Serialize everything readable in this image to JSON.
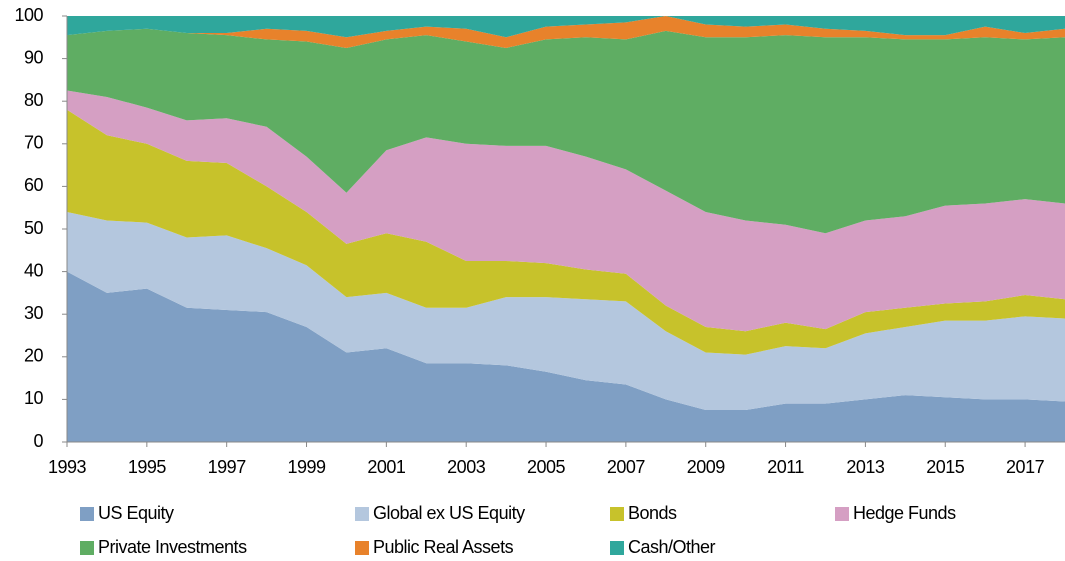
{
  "chart_data": {
    "type": "stacked_area",
    "x": [
      1993,
      1994,
      1995,
      1996,
      1997,
      1998,
      1999,
      2000,
      2001,
      2002,
      2003,
      2004,
      2005,
      2006,
      2007,
      2008,
      2009,
      2010,
      2011,
      2012,
      2013,
      2014,
      2015,
      2016,
      2017,
      2018
    ],
    "xlim": [
      1993,
      2018
    ],
    "xticks": [
      1993,
      1995,
      1997,
      1999,
      2001,
      2003,
      2005,
      2007,
      2009,
      2011,
      2013,
      2015,
      2017
    ],
    "ylim": [
      0,
      100
    ],
    "yticks": [
      0,
      10,
      20,
      30,
      40,
      50,
      60,
      70,
      80,
      90,
      100
    ],
    "grid": false,
    "series": [
      {
        "name": "US Equity",
        "color": "#7f9fc4",
        "values": [
          40,
          35,
          36,
          31.5,
          31,
          30.5,
          27,
          21,
          22,
          18.5,
          18.5,
          18,
          16.5,
          14.5,
          13.5,
          10,
          7.5,
          7.5,
          9,
          9,
          10,
          11,
          10.5,
          10,
          10,
          9.5
        ]
      },
      {
        "name": "Global ex US Equity",
        "color": "#b4c7de",
        "values": [
          14,
          17,
          15.5,
          16.5,
          17.5,
          15,
          14.5,
          13,
          13,
          13,
          13,
          16,
          17.5,
          19,
          19.5,
          16,
          13.5,
          13,
          13.5,
          13,
          15.5,
          16,
          18,
          18.5,
          19.5,
          19.5
        ]
      },
      {
        "name": "Bonds",
        "color": "#c7c22b",
        "values": [
          24,
          20,
          18.5,
          18,
          17,
          14.5,
          12.5,
          12.5,
          14,
          15.5,
          11,
          8.5,
          8,
          7,
          6.5,
          6,
          6,
          5.5,
          5.5,
          4.5,
          5,
          4.5,
          4,
          4.5,
          5,
          4.5
        ]
      },
      {
        "name": "Hedge Funds",
        "color": "#d59fc3",
        "values": [
          4.5,
          9,
          8.5,
          9.5,
          10.5,
          14,
          13,
          12,
          19.5,
          24.5,
          27.5,
          27,
          27.5,
          26.5,
          24.5,
          27,
          27,
          26,
          23,
          22.5,
          21.5,
          21.5,
          23,
          23,
          22.5,
          22.5
        ]
      },
      {
        "name": "Private Investments",
        "color": "#5fad63",
        "values": [
          13,
          15.5,
          18.5,
          20.5,
          19.5,
          20.5,
          27,
          34,
          26,
          24,
          24,
          23,
          25,
          28,
          30.5,
          37.5,
          41,
          43,
          44.5,
          46,
          43,
          41.5,
          39,
          39,
          37.5,
          39
        ]
      },
      {
        "name": "Public Real Assets",
        "color": "#e8822b",
        "values": [
          0,
          0,
          0,
          0,
          0.5,
          2.5,
          2.5,
          2.5,
          2,
          2,
          3,
          2.5,
          3,
          3,
          4,
          3.5,
          3,
          2.5,
          2.5,
          2,
          1.5,
          1,
          1,
          2.5,
          1.5,
          2
        ]
      },
      {
        "name": "Cash/Other",
        "color": "#2fa79c",
        "values": [
          4.5,
          3.5,
          3,
          4,
          4,
          3,
          3.5,
          5,
          3.5,
          2.5,
          3,
          5,
          2.5,
          2,
          1.5,
          0,
          2,
          2.5,
          2,
          3,
          3.5,
          4.5,
          4.5,
          2.5,
          4,
          3
        ]
      }
    ]
  }
}
